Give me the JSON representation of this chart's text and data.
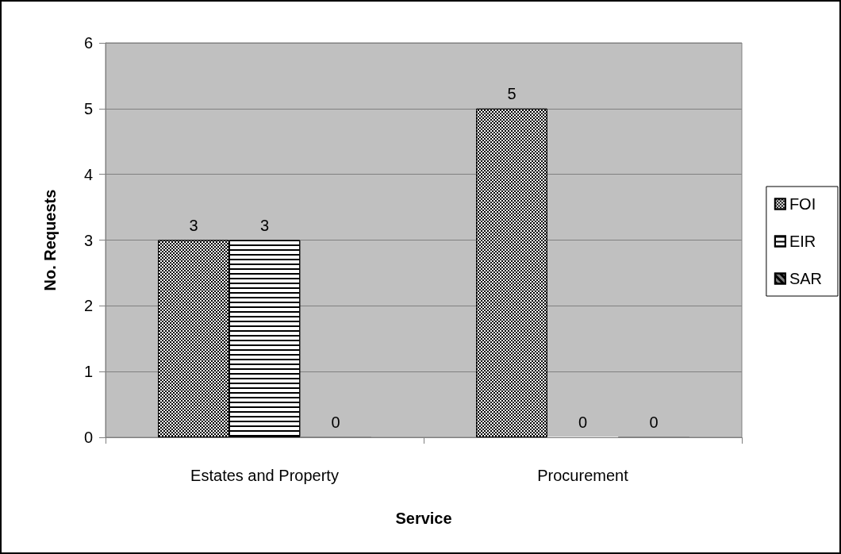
{
  "chart_data": {
    "type": "bar",
    "xlabel": "Service",
    "ylabel": "No. Requests",
    "categories": [
      "Estates and Property",
      "Procurement"
    ],
    "series": [
      {
        "name": "FOI",
        "color": "#000000",
        "values": [
          3,
          5
        ]
      },
      {
        "name": "EIR",
        "color": "#ffffff",
        "values": [
          3,
          0
        ]
      },
      {
        "name": "SAR",
        "color": "#808080",
        "values": [
          0,
          0
        ]
      }
    ],
    "ylim": [
      0,
      6
    ],
    "yticks": [
      0,
      1,
      2,
      3,
      4,
      5,
      6
    ],
    "grid": "y",
    "legend": "right",
    "data_labels": true
  }
}
